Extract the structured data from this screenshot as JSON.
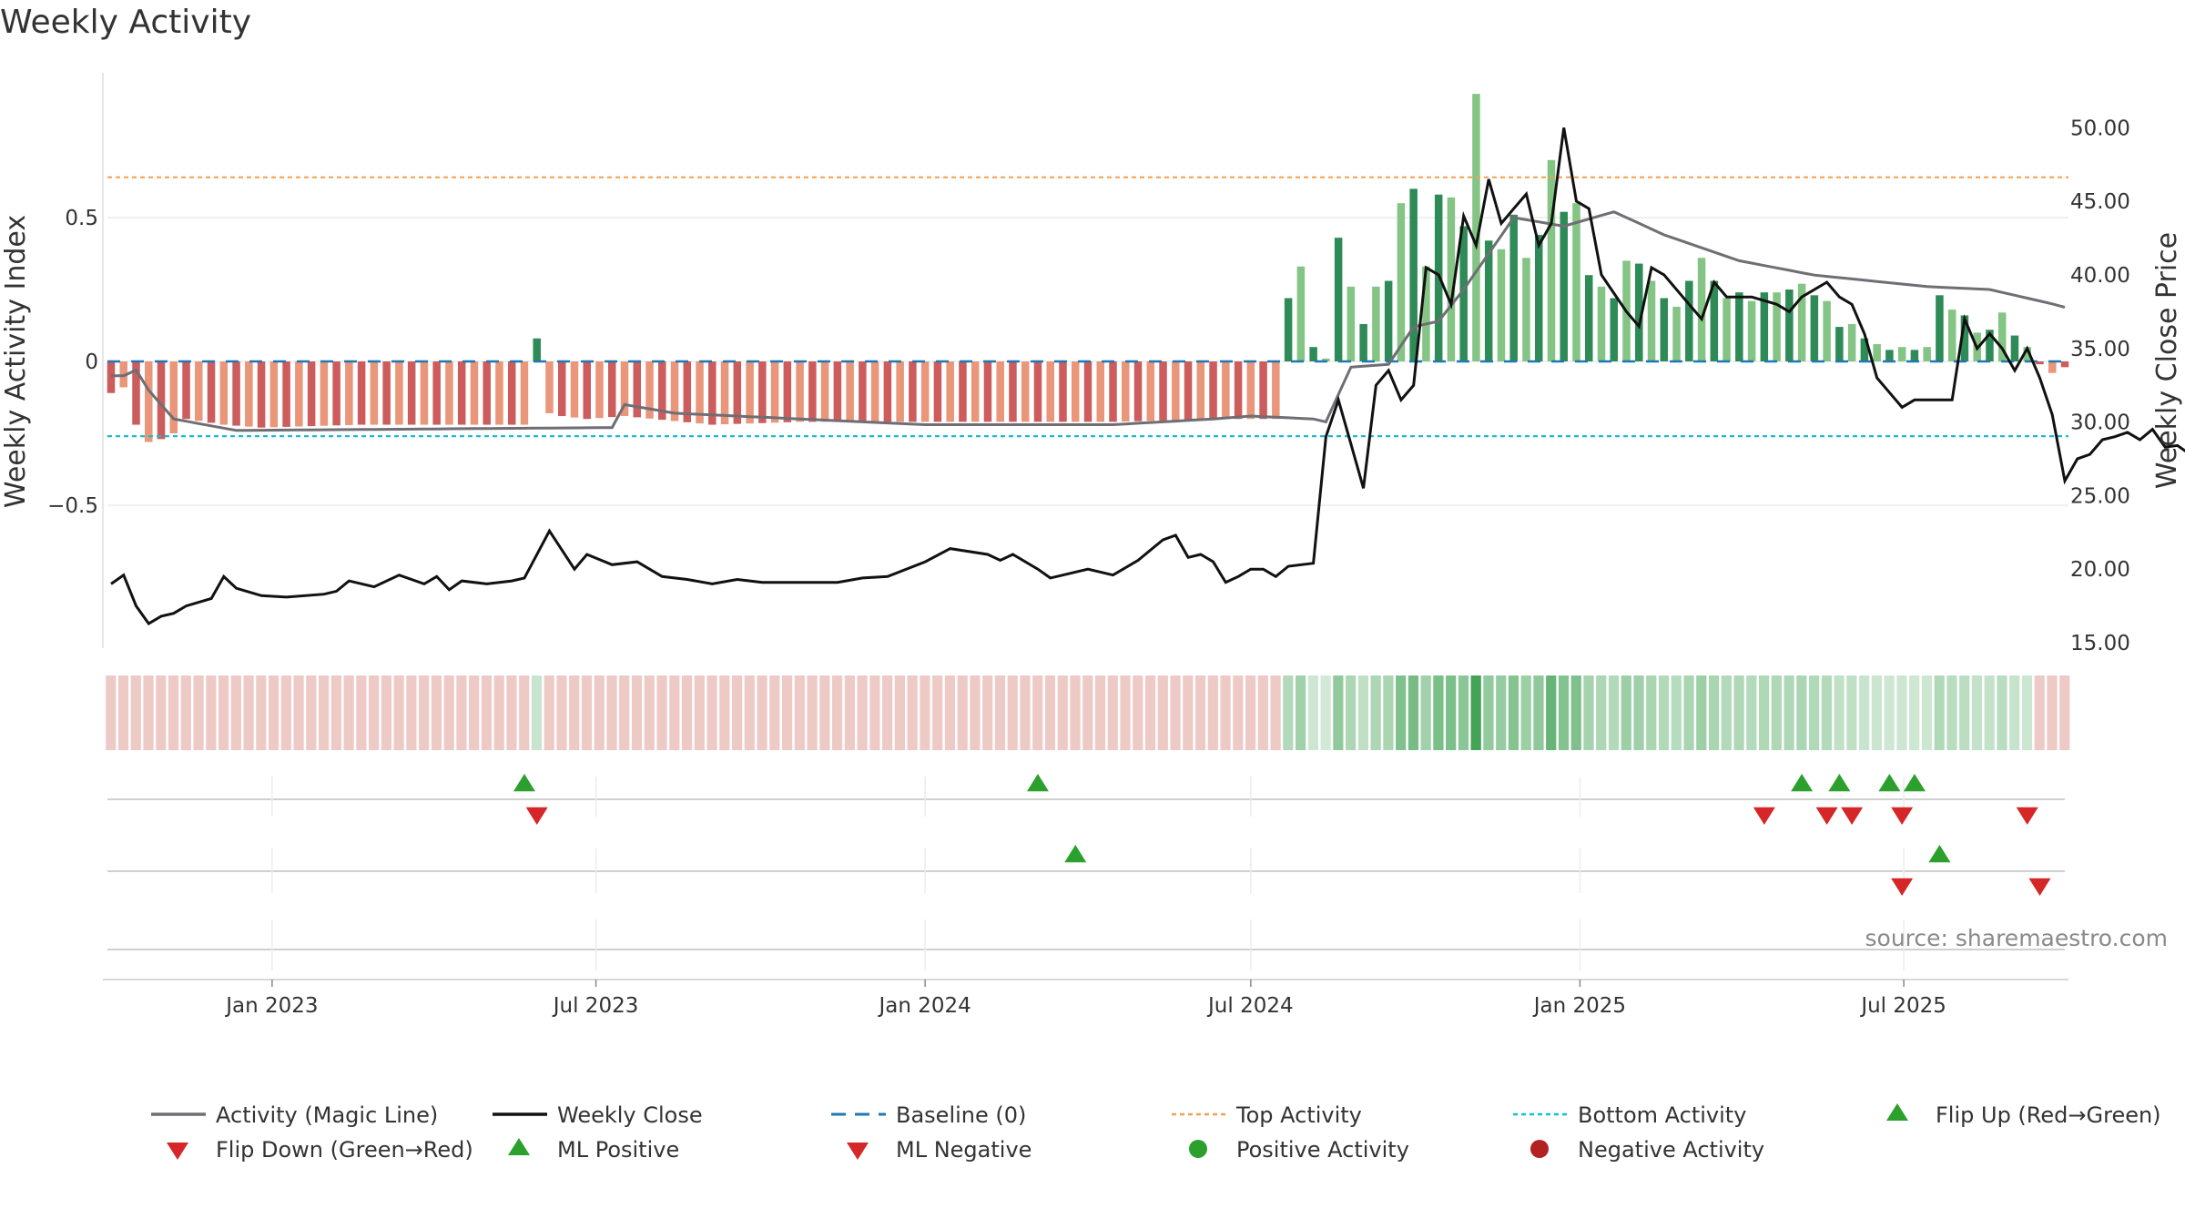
{
  "title": "Weekly Activity",
  "source": "source: sharemaestro.com",
  "colors": {
    "strong_green": "#2e8b57",
    "light_green": "#84c484",
    "strong_red": "#cd5c5c",
    "light_red": "#e9967a",
    "magic_line": "#6e6e74",
    "close_line": "#111111",
    "baseline": "#1f77b4",
    "top_line": "#f0a050",
    "bottom_line": "#17becf",
    "flip_up": "#2ca02c",
    "flip_down": "#d62728",
    "positive_dot": "#2ca02c",
    "negative_dot": "#b22222"
  },
  "chart_data": {
    "type": "bar",
    "ylabel": "Weekly Activity Index",
    "y2label": "Weekly Close Price",
    "ylim": [
      -1.0,
      1.0
    ],
    "y2lim": [
      15.0,
      52.0
    ],
    "yticks": [
      {
        "v": 0.5,
        "label": "0.5"
      },
      {
        "v": 0,
        "label": "0"
      },
      {
        "v": -0.5,
        "label": "−0.5"
      }
    ],
    "y2ticks": [
      "15.00",
      "20.00",
      "25.00",
      "30.00",
      "35.00",
      "40.00",
      "45.00",
      "50.00"
    ],
    "x_start": "2022-10-03",
    "x_end": "2025-09-29",
    "xticks": [
      {
        "date": "2023-01-01",
        "label": "Jan 2023"
      },
      {
        "date": "2023-07-01",
        "label": "Jul 2023"
      },
      {
        "date": "2024-01-01",
        "label": "Jan 2024"
      },
      {
        "date": "2024-07-01",
        "label": "Jul 2024"
      },
      {
        "date": "2025-01-01",
        "label": "Jan 2025"
      },
      {
        "date": "2025-07-01",
        "label": "Jul 2025"
      }
    ],
    "top_activity": 0.64,
    "bottom_activity": -0.26,
    "grid": true,
    "series": [
      {
        "name": "Activity (Magic Line)",
        "anchors": [
          [
            0,
            -0.05
          ],
          [
            1,
            -0.05
          ],
          [
            2,
            -0.03
          ],
          [
            3,
            -0.1
          ],
          [
            5,
            -0.2
          ],
          [
            10,
            -0.24
          ],
          [
            40,
            -0.23
          ],
          [
            41,
            -0.15
          ],
          [
            45,
            -0.18
          ],
          [
            55,
            -0.2
          ],
          [
            65,
            -0.22
          ],
          [
            80,
            -0.22
          ],
          [
            88,
            -0.2
          ],
          [
            91,
            -0.19
          ],
          [
            96,
            -0.2
          ],
          [
            97,
            -0.21
          ],
          [
            99,
            -0.02
          ],
          [
            102,
            -0.01
          ],
          [
            104,
            0.12
          ],
          [
            106,
            0.14
          ],
          [
            108,
            0.25
          ],
          [
            112,
            0.5
          ],
          [
            116,
            0.47
          ],
          [
            120,
            0.52
          ],
          [
            124,
            0.44
          ],
          [
            130,
            0.35
          ],
          [
            136,
            0.3
          ],
          [
            145,
            0.26
          ],
          [
            150,
            0.25
          ],
          [
            155,
            0.2
          ],
          [
            160,
            0.14
          ],
          [
            165,
            0.12
          ],
          [
            170,
            0.14
          ],
          [
            175,
            0.1
          ],
          [
            180,
            0.06
          ],
          [
            185,
            0.03
          ],
          [
            190,
            0.01
          ],
          [
            200,
            0.01
          ],
          [
            208,
            0.0
          ]
        ]
      },
      {
        "name": "Weekly Close",
        "anchors": [
          [
            0,
            19.0
          ],
          [
            1,
            19.6
          ],
          [
            2,
            17.5
          ],
          [
            3,
            16.3
          ],
          [
            4,
            16.8
          ],
          [
            5,
            17.0
          ],
          [
            6,
            17.5
          ],
          [
            8,
            18.0
          ],
          [
            9,
            19.5
          ],
          [
            10,
            18.7
          ],
          [
            12,
            18.2
          ],
          [
            14,
            18.1
          ],
          [
            17,
            18.3
          ],
          [
            18,
            18.5
          ],
          [
            19,
            19.2
          ],
          [
            21,
            18.8
          ],
          [
            23,
            19.6
          ],
          [
            25,
            19.0
          ],
          [
            26,
            19.5
          ],
          [
            27,
            18.6
          ],
          [
            28,
            19.2
          ],
          [
            30,
            19.0
          ],
          [
            32,
            19.2
          ],
          [
            33,
            19.4
          ],
          [
            35,
            22.6
          ],
          [
            37,
            20.0
          ],
          [
            38,
            21.0
          ],
          [
            40,
            20.3
          ],
          [
            42,
            20.5
          ],
          [
            44,
            19.5
          ],
          [
            46,
            19.3
          ],
          [
            48,
            19.0
          ],
          [
            50,
            19.3
          ],
          [
            52,
            19.1
          ],
          [
            55,
            19.1
          ],
          [
            58,
            19.1
          ],
          [
            60,
            19.4
          ],
          [
            62,
            19.5
          ],
          [
            65,
            20.5
          ],
          [
            67,
            21.4
          ],
          [
            70,
            21.0
          ],
          [
            71,
            20.6
          ],
          [
            72,
            21.0
          ],
          [
            74,
            20.0
          ],
          [
            75,
            19.4
          ],
          [
            76,
            19.6
          ],
          [
            78,
            20.0
          ],
          [
            80,
            19.6
          ],
          [
            82,
            20.6
          ],
          [
            84,
            22.0
          ],
          [
            85,
            22.3
          ],
          [
            86,
            20.8
          ],
          [
            87,
            21.0
          ],
          [
            88,
            20.5
          ],
          [
            89,
            19.1
          ],
          [
            90,
            19.5
          ],
          [
            91,
            20.0
          ],
          [
            92,
            20.0
          ],
          [
            93,
            19.5
          ],
          [
            94,
            20.2
          ],
          [
            96,
            20.4
          ],
          [
            97,
            29.0
          ],
          [
            98,
            31.5
          ],
          [
            99,
            28.5
          ],
          [
            100,
            25.5
          ],
          [
            101,
            32.5
          ],
          [
            102,
            33.5
          ],
          [
            103,
            31.5
          ],
          [
            104,
            32.5
          ],
          [
            105,
            40.5
          ],
          [
            106,
            40.0
          ],
          [
            107,
            38.0
          ],
          [
            108,
            44.0
          ],
          [
            109,
            42.0
          ],
          [
            110,
            46.5
          ],
          [
            111,
            43.5
          ],
          [
            112,
            44.5
          ],
          [
            113,
            45.5
          ],
          [
            114,
            42.0
          ],
          [
            115,
            43.5
          ],
          [
            116,
            50.0
          ],
          [
            117,
            45.0
          ],
          [
            118,
            44.5
          ],
          [
            119,
            40.0
          ],
          [
            121,
            37.5
          ],
          [
            122,
            36.5
          ],
          [
            123,
            40.5
          ],
          [
            124,
            40.0
          ],
          [
            126,
            38.0
          ],
          [
            127,
            37.0
          ],
          [
            128,
            39.5
          ],
          [
            129,
            38.5
          ],
          [
            130,
            38.5
          ],
          [
            131,
            38.5
          ],
          [
            133,
            38.0
          ],
          [
            134,
            37.5
          ],
          [
            135,
            38.5
          ],
          [
            137,
            39.5
          ],
          [
            138,
            38.5
          ],
          [
            139,
            38.0
          ],
          [
            140,
            36.0
          ],
          [
            141,
            33.0
          ],
          [
            142,
            32.0
          ],
          [
            143,
            31.0
          ],
          [
            144,
            31.5
          ],
          [
            147,
            31.5
          ],
          [
            148,
            37.0
          ],
          [
            149,
            35.0
          ],
          [
            150,
            36.0
          ],
          [
            151,
            35.0
          ],
          [
            152,
            33.5
          ],
          [
            153,
            35.0
          ],
          [
            154,
            33.0
          ],
          [
            155,
            30.5
          ],
          [
            156,
            26.0
          ],
          [
            157,
            27.5
          ],
          [
            158,
            27.8
          ],
          [
            159,
            28.8
          ],
          [
            160,
            29.0
          ],
          [
            161,
            29.3
          ],
          [
            162,
            28.8
          ],
          [
            163,
            29.5
          ],
          [
            164,
            28.3
          ],
          [
            165,
            28.4
          ],
          [
            166,
            27.8
          ],
          [
            167,
            28.7
          ],
          [
            168,
            27.5
          ],
          [
            169,
            29.2
          ],
          [
            170,
            29.5
          ],
          [
            171,
            29.5
          ],
          [
            172,
            29.5
          ],
          [
            173,
            29.9
          ],
          [
            174,
            29.8
          ],
          [
            175,
            29.9
          ],
          [
            176,
            29.5
          ],
          [
            177,
            29.3
          ],
          [
            178,
            28.8
          ],
          [
            179,
            27.0
          ]
        ]
      },
      {
        "name": "Baseline (0)",
        "value": 0
      },
      {
        "name": "Top Activity",
        "value": 0.64
      },
      {
        "name": "Bottom Activity",
        "value": -0.26
      }
    ],
    "bar_anchors": [
      [
        0,
        -0.11
      ],
      [
        1,
        -0.09
      ],
      [
        2,
        -0.22
      ],
      [
        3,
        -0.28
      ],
      [
        4,
        -0.27
      ],
      [
        5,
        -0.25
      ],
      [
        6,
        -0.2
      ],
      [
        9,
        -0.22
      ],
      [
        12,
        -0.23
      ],
      [
        20,
        -0.22
      ],
      [
        28,
        -0.22
      ],
      [
        33,
        -0.22
      ],
      [
        34,
        0.08
      ],
      [
        35,
        -0.18
      ],
      [
        36,
        -0.19
      ],
      [
        38,
        -0.2
      ],
      [
        41,
        -0.19
      ],
      [
        48,
        -0.22
      ],
      [
        55,
        -0.21
      ],
      [
        70,
        -0.21
      ],
      [
        80,
        -0.21
      ],
      [
        89,
        -0.2
      ],
      [
        93,
        -0.2
      ],
      [
        94,
        0.22
      ],
      [
        95,
        0.33
      ],
      [
        96,
        0.05
      ],
      [
        97,
        0.01
      ],
      [
        98,
        0.43
      ],
      [
        99,
        0.26
      ],
      [
        100,
        0.13
      ],
      [
        101,
        0.26
      ],
      [
        102,
        0.28
      ],
      [
        103,
        0.55
      ],
      [
        104,
        0.6
      ],
      [
        105,
        0.33
      ],
      [
        106,
        0.58
      ],
      [
        107,
        0.57
      ],
      [
        108,
        0.47
      ],
      [
        109,
        0.93
      ],
      [
        110,
        0.42
      ],
      [
        111,
        0.39
      ],
      [
        112,
        0.51
      ],
      [
        113,
        0.36
      ],
      [
        114,
        0.44
      ],
      [
        115,
        0.7
      ],
      [
        116,
        0.52
      ],
      [
        117,
        0.55
      ],
      [
        118,
        0.3
      ],
      [
        119,
        0.26
      ],
      [
        120,
        0.22
      ],
      [
        121,
        0.35
      ],
      [
        122,
        0.34
      ],
      [
        123,
        0.28
      ],
      [
        124,
        0.22
      ],
      [
        125,
        0.19
      ],
      [
        126,
        0.28
      ],
      [
        127,
        0.36
      ],
      [
        128,
        0.28
      ],
      [
        129,
        0.22
      ],
      [
        130,
        0.24
      ],
      [
        131,
        0.21
      ],
      [
        132,
        0.24
      ],
      [
        133,
        0.24
      ],
      [
        134,
        0.25
      ],
      [
        135,
        0.27
      ],
      [
        136,
        0.23
      ],
      [
        137,
        0.21
      ],
      [
        138,
        0.12
      ],
      [
        139,
        0.13
      ],
      [
        140,
        0.08
      ],
      [
        141,
        0.06
      ],
      [
        142,
        0.04
      ],
      [
        143,
        0.05
      ],
      [
        144,
        0.04
      ],
      [
        145,
        0.05
      ],
      [
        146,
        0.23
      ],
      [
        147,
        0.18
      ],
      [
        148,
        0.16
      ],
      [
        149,
        0.1
      ],
      [
        150,
        0.11
      ],
      [
        151,
        0.17
      ],
      [
        152,
        0.09
      ],
      [
        153,
        0.05
      ],
      [
        154,
        -0.01
      ],
      [
        155,
        -0.04
      ],
      [
        156,
        -0.02
      ],
      [
        157,
        -0.02
      ],
      [
        158,
        0.0
      ],
      [
        159,
        -0.01
      ],
      [
        160,
        0.04
      ],
      [
        161,
        -0.01
      ],
      [
        162,
        -0.02
      ],
      [
        163,
        -0.02
      ],
      [
        164,
        -0.01
      ],
      [
        165,
        -0.01
      ],
      [
        166,
        0.0
      ],
      [
        170,
        0.01
      ],
      [
        175,
        0.01
      ],
      [
        177,
        0.0
      ],
      [
        178,
        -0.02
      ],
      [
        179,
        -0.03
      ]
    ],
    "flip_up_dates": [
      "2023-05-22",
      "2024-03-04",
      "2025-05-05",
      "2025-05-26",
      "2025-06-23",
      "2025-07-07"
    ],
    "flip_down_dates": [
      "2023-05-29",
      "2025-04-14",
      "2025-05-19",
      "2025-06-02",
      "2025-06-30",
      "2025-09-08"
    ],
    "ml_positive_dates": [
      "2024-03-25",
      "2025-07-21"
    ],
    "ml_negative_dates": [
      "2025-06-30",
      "2025-09-15"
    ],
    "positive_activity_dates": [],
    "negative_activity_dates": []
  },
  "legend": [
    {
      "label": "Activity (Magic Line)",
      "kind": "line",
      "color": "#6e6e74"
    },
    {
      "label": "Weekly Close",
      "kind": "line",
      "color": "#111111"
    },
    {
      "label": "Baseline (0)",
      "kind": "dash",
      "color": "#1f77b4"
    },
    {
      "label": "Top Activity",
      "kind": "dot",
      "color": "#f0a050"
    },
    {
      "label": "Bottom Activity",
      "kind": "dot",
      "color": "#17becf"
    },
    {
      "label": "Flip Up (Red→Green)",
      "kind": "up",
      "color": "#2ca02c"
    },
    {
      "label": "Flip Down (Green→Red)",
      "kind": "down",
      "color": "#d62728"
    },
    {
      "label": "ML Positive",
      "kind": "up",
      "color": "#2ca02c"
    },
    {
      "label": "ML Negative",
      "kind": "down",
      "color": "#d62728"
    },
    {
      "label": "Positive Activity",
      "kind": "circle",
      "color": "#2ca02c"
    },
    {
      "label": "Negative Activity",
      "kind": "circle",
      "color": "#b22222"
    }
  ]
}
